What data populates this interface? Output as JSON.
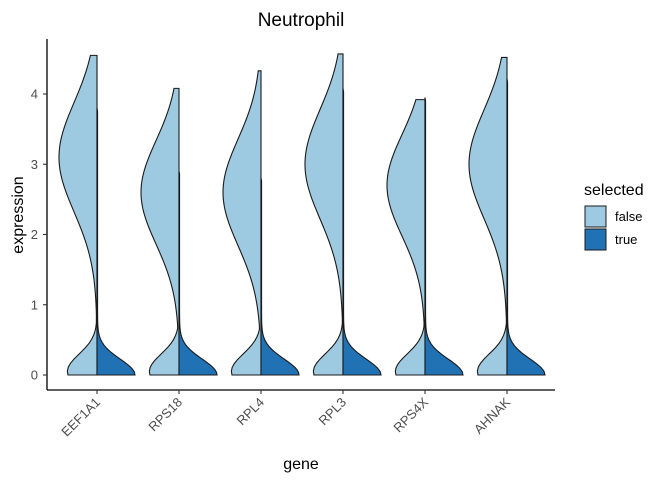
{
  "chart_data": {
    "type": "split-violin",
    "title": "Neutrophil",
    "xlabel": "gene",
    "ylabel": "expression",
    "categories": [
      "EEF1A1",
      "RPS18",
      "RPL4",
      "RPL3",
      "RPS4X",
      "AHNAK"
    ],
    "ylim": [
      -0.2,
      4.8
    ],
    "yticks": [
      0,
      1,
      2,
      3,
      4
    ],
    "legend": {
      "title": "selected",
      "position": "right",
      "entries": [
        {
          "label": "false",
          "color": "#9ecae1"
        },
        {
          "label": "true",
          "color": "#2171b5"
        }
      ]
    },
    "series": [
      {
        "name": "false",
        "color": "#9ecae1",
        "side": "left",
        "max": [
          4.55,
          4.08,
          4.33,
          4.57,
          3.92,
          4.52
        ],
        "peak": [
          3.1,
          2.6,
          2.6,
          3.0,
          2.7,
          3.0
        ]
      },
      {
        "name": "true",
        "color": "#2171b5",
        "side": "right",
        "max": [
          3.8,
          2.9,
          2.8,
          4.08,
          3.95,
          4.22
        ],
        "peak": [
          0.15,
          0.15,
          0.15,
          0.15,
          0.15,
          0.15
        ]
      }
    ],
    "grid": false
  }
}
